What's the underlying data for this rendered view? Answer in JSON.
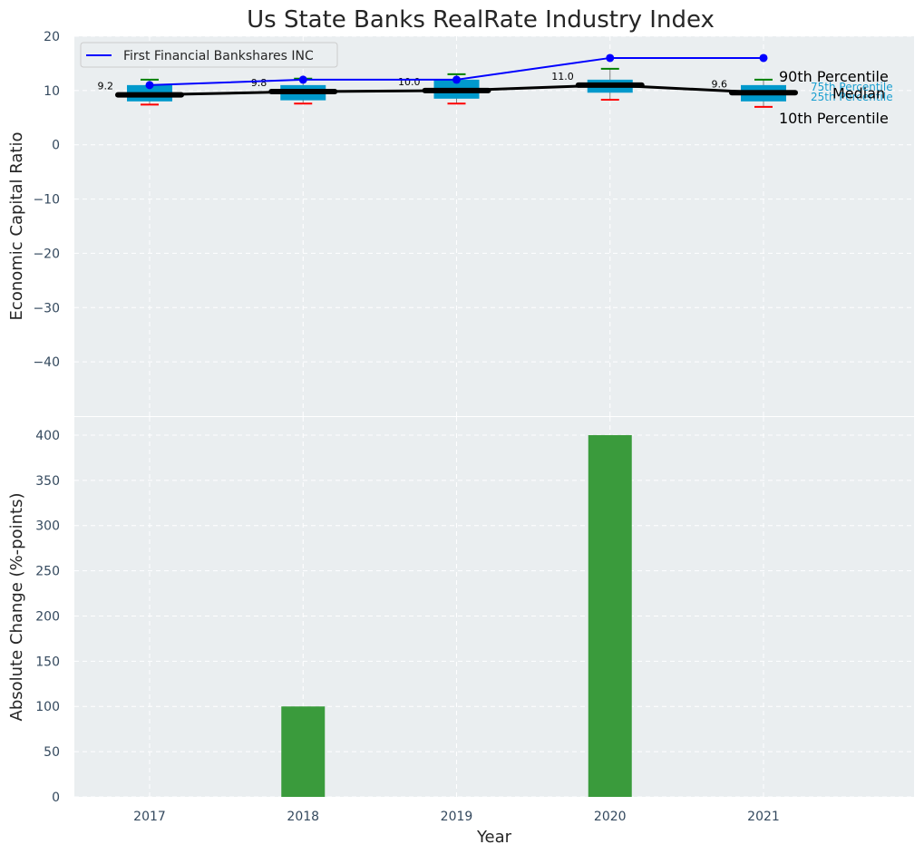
{
  "chart_data": [
    {
      "type": "box+line",
      "title": "Us State Banks RealRate Industry Index",
      "ylabel": "Economic Capital Ratio",
      "xlabel": "",
      "categories": [
        "2017",
        "2018",
        "2019",
        "2020",
        "2021"
      ],
      "ylim": [
        -50,
        20
      ],
      "yticks": [
        20,
        10,
        0,
        -10,
        -20,
        -30,
        -40
      ],
      "ytick_labels": [
        "20",
        "10",
        "0",
        "−10",
        "−20",
        "−30",
        "−40"
      ],
      "grid": true,
      "legend_position": "top-left",
      "series": [
        {
          "name": "First Financial Bankshares INC",
          "color": "#0000ff",
          "values": [
            11,
            12,
            12,
            16,
            16
          ]
        }
      ],
      "distribution": {
        "p10": [
          7.4,
          7.6,
          7.6,
          8.3,
          7.0
        ],
        "p25": [
          8.0,
          8.2,
          8.5,
          9.6,
          8.0
        ],
        "median": [
          9.2,
          9.8,
          10.0,
          11.0,
          9.6
        ],
        "p75": [
          11.0,
          11.0,
          12.0,
          12.0,
          11.0
        ],
        "p90": [
          12.0,
          12.2,
          13.0,
          14.0,
          12.0
        ],
        "median_labels": [
          "9.2",
          "9.8",
          "10.0",
          "11.0",
          "9.6"
        ]
      },
      "annotations": {
        "p90": "90th Percentile",
        "p75": "75th Percentile",
        "median": "Median",
        "p25": "25th Percentile",
        "p10": "10th Percentile"
      },
      "colors": {
        "box": "#0099cc",
        "median": "#000000",
        "whisker_high": "#008000",
        "whisker_low": "#ff0000",
        "panel_bg": "#eaeef0"
      }
    },
    {
      "type": "bar",
      "title": "",
      "xlabel": "Year",
      "ylabel": "Absolute Change (%-points)",
      "categories": [
        "2017",
        "2018",
        "2019",
        "2020",
        "2021"
      ],
      "values": [
        0,
        100,
        0,
        400,
        0
      ],
      "ylim": [
        0,
        420
      ],
      "yticks": [
        0,
        50,
        100,
        150,
        200,
        250,
        300,
        350,
        400
      ],
      "grid": true,
      "colors": {
        "bar": "#3a9b3c"
      }
    }
  ]
}
